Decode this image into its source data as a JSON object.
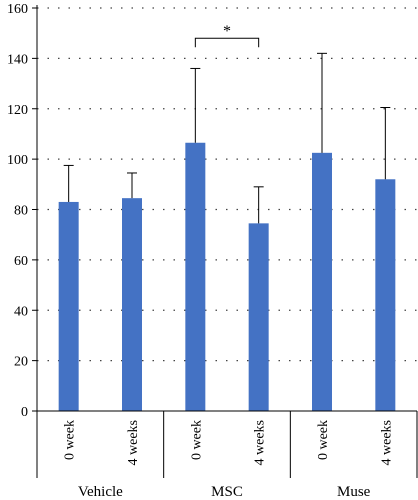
{
  "chart_data": {
    "type": "bar",
    "ylim": [
      0,
      160
    ],
    "yticks": [
      0,
      20,
      40,
      60,
      80,
      100,
      120,
      140,
      160
    ],
    "grid": true,
    "bar_color": "#4472C4",
    "categories": [
      "0 week",
      "4 weeks",
      "0 week",
      "4 weeks",
      "0 week",
      "4 weeks"
    ],
    "groups": [
      {
        "label": "Vehicle",
        "categories": [
          0,
          1
        ]
      },
      {
        "label": "MSC",
        "categories": [
          2,
          3
        ]
      },
      {
        "label": "Muse",
        "categories": [
          4,
          5
        ]
      }
    ],
    "values": [
      83,
      84.5,
      106.5,
      74.5,
      102.5,
      92
    ],
    "error_upper": [
      97.5,
      94.5,
      136,
      89,
      142,
      120.5
    ],
    "annotations": [
      {
        "text": "*",
        "from_category": 2,
        "to_category": 3,
        "y": 148
      }
    ]
  }
}
